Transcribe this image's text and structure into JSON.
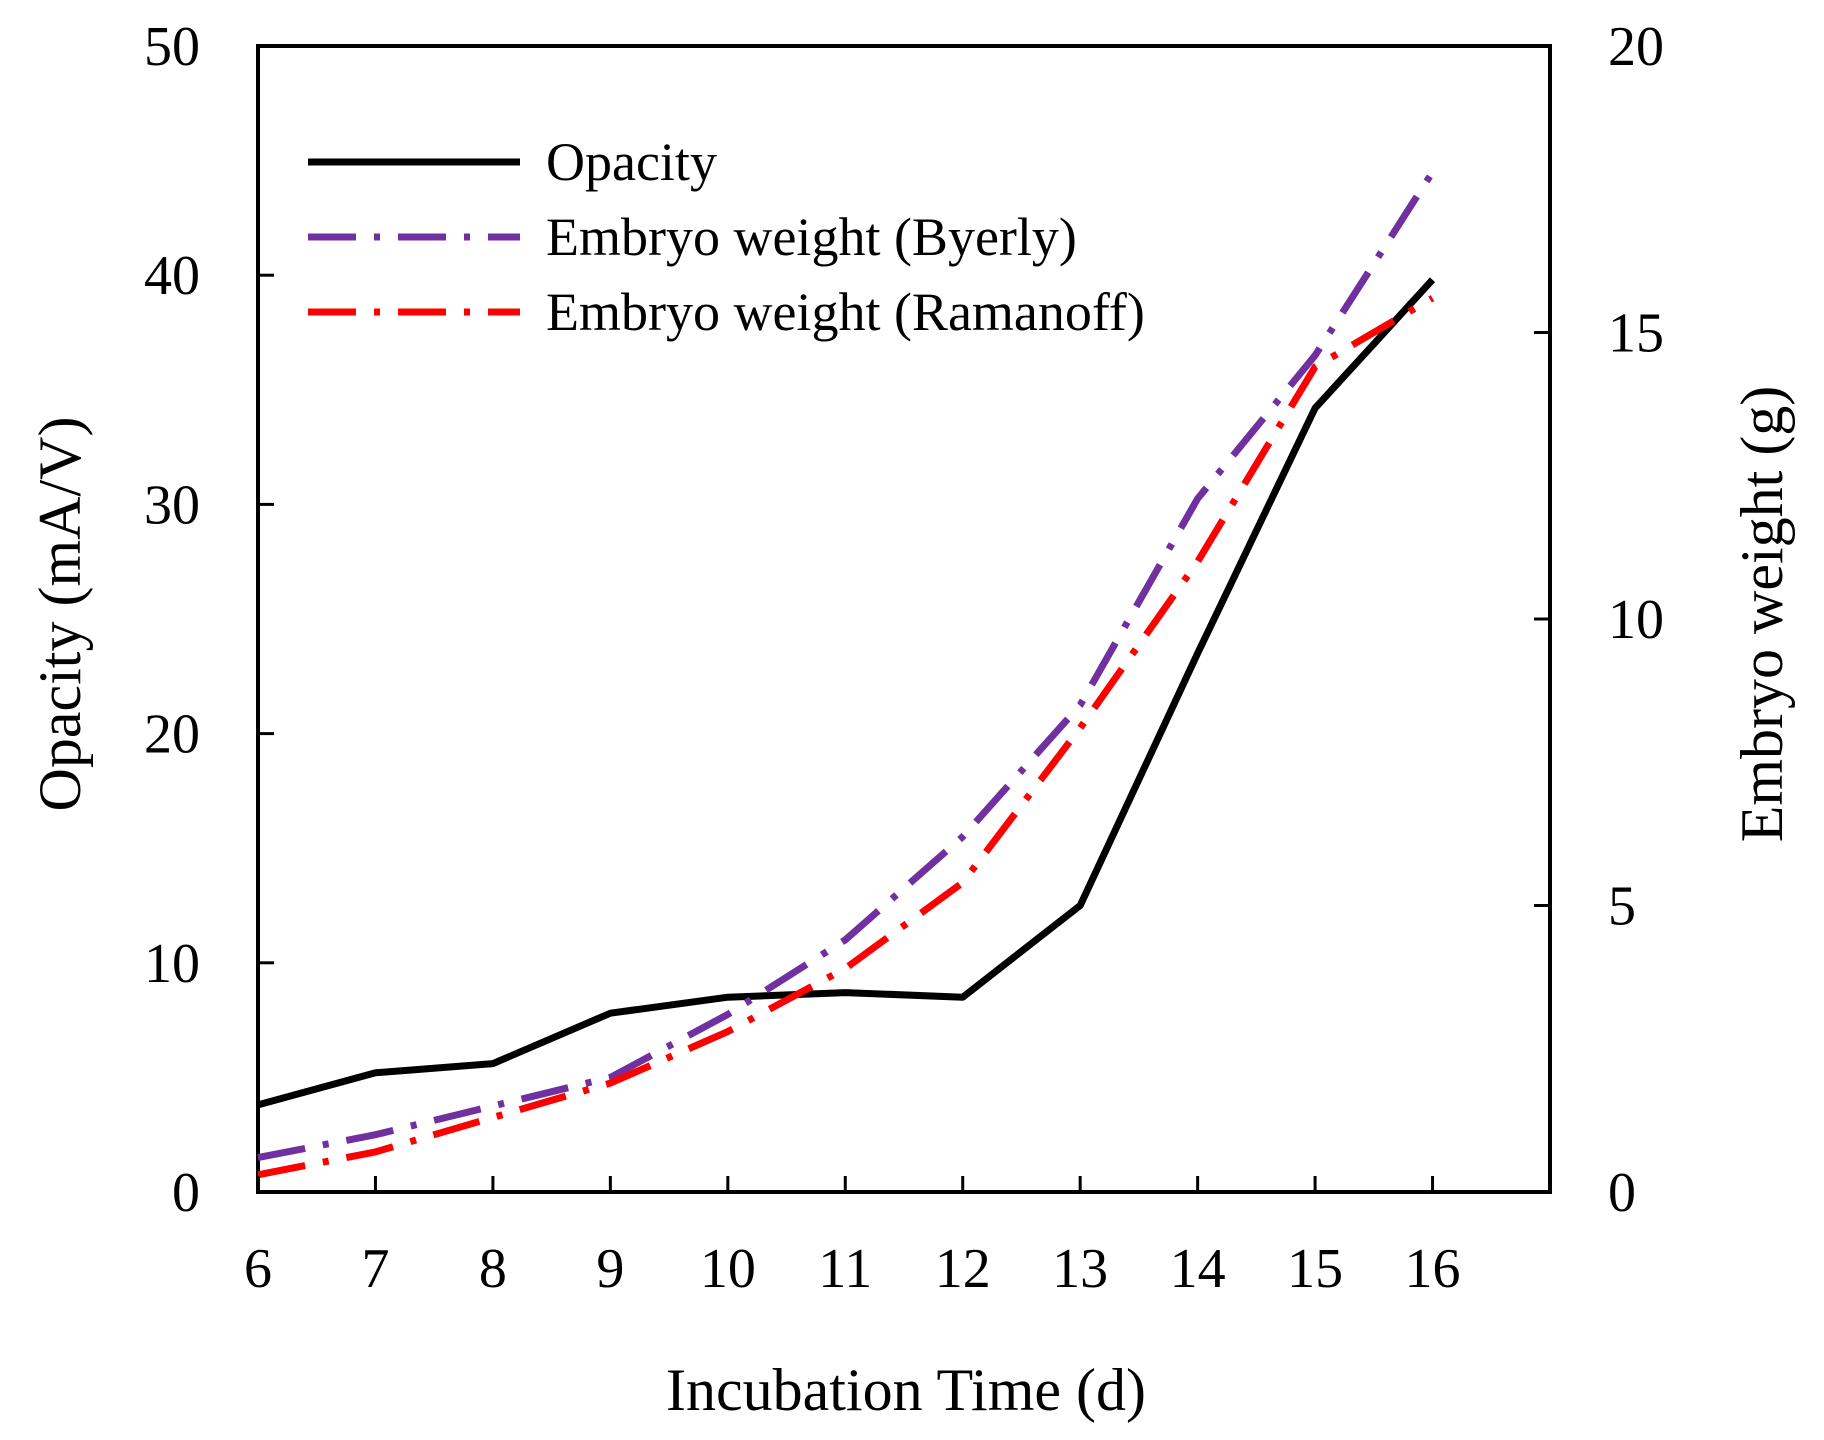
{
  "chart_data": {
    "type": "line",
    "xlabel": "Incubation Time (d)",
    "ylabel_left": "Opacity (mA/V)",
    "ylabel_right": "Embryo weight (g)",
    "x": [
      6,
      7,
      8,
      9,
      10,
      11,
      12,
      13,
      14,
      15,
      16
    ],
    "xlim": [
      6,
      17
    ],
    "ylim_left": [
      0,
      50
    ],
    "ylim_right": [
      0,
      20
    ],
    "x_ticks": [
      6,
      7,
      8,
      9,
      10,
      11,
      12,
      13,
      14,
      15,
      16
    ],
    "y_ticks_left": [
      0,
      10,
      20,
      30,
      40,
      50
    ],
    "y_ticks_right": [
      0,
      5,
      10,
      15,
      20
    ],
    "legend_position": "top-left",
    "series": [
      {
        "name": "Opacity",
        "axis": "left",
        "color": "#000000",
        "style": "solid",
        "values": [
          3.8,
          5.2,
          5.6,
          7.8,
          8.5,
          8.7,
          8.5,
          12.5,
          23.5,
          34.2,
          39.8
        ]
      },
      {
        "name": "Embryo weight (Byerly)",
        "axis": "right",
        "color": "#7030A0",
        "style": "dash-dot",
        "values": [
          0.6,
          1.0,
          1.5,
          2.0,
          3.1,
          4.4,
          6.2,
          8.5,
          12.1,
          14.6,
          17.8
        ]
      },
      {
        "name": "Embryo weight (Ramanoff)",
        "axis": "right",
        "color": "#FF0000",
        "style": "dash-dot",
        "values": [
          0.3,
          0.7,
          1.3,
          1.9,
          2.8,
          3.9,
          5.4,
          8.1,
          11.0,
          14.4,
          15.6
        ]
      }
    ]
  }
}
